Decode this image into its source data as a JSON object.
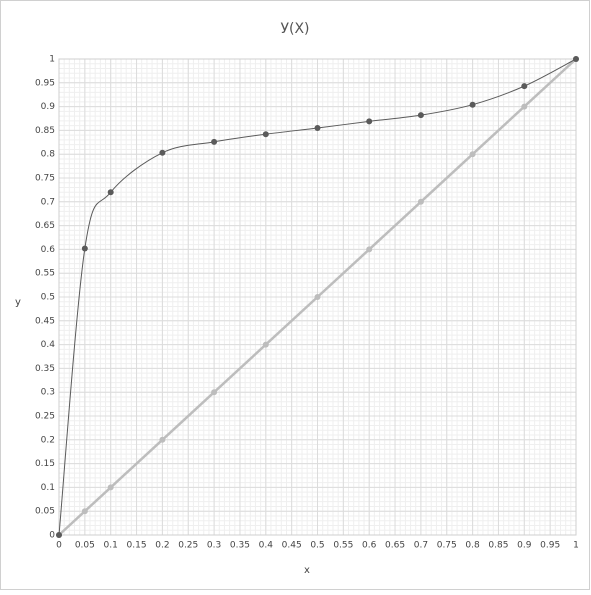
{
  "chart_data": {
    "type": "line",
    "title": "У(Х)",
    "x_label": "x",
    "y_label": "y",
    "x": [
      0,
      0.05,
      0.1,
      0.2,
      0.3,
      0.4,
      0.5,
      0.6,
      0.7,
      0.8,
      0.9,
      1
    ],
    "series": [
      {
        "color": "#5a5a5a",
        "values": [
          0,
          0.602,
          0.72,
          0.803,
          0.826,
          0.842,
          0.855,
          0.869,
          0.882,
          0.904,
          0.943,
          1
        ],
        "smooth": true
      },
      {
        "color": "#bdbdbd",
        "values": [
          0,
          0.05,
          0.1,
          0.2,
          0.3,
          0.4,
          0.5,
          0.6,
          0.7,
          0.8,
          0.9,
          1
        ],
        "smooth": false
      }
    ],
    "xlim": [
      0,
      1
    ],
    "ylim": [
      0,
      1
    ],
    "xticks": [
      0,
      0.05,
      0.1,
      0.15,
      0.2,
      0.25,
      0.3,
      0.35,
      0.4,
      0.45,
      0.5,
      0.55,
      0.6,
      0.65,
      0.7,
      0.75,
      0.8,
      0.85,
      0.9,
      0.95,
      1
    ],
    "yticks": [
      0,
      0.05,
      0.1,
      0.15,
      0.2,
      0.25,
      0.3,
      0.35,
      0.4,
      0.45,
      0.5,
      0.55,
      0.6,
      0.65,
      0.7,
      0.75,
      0.8,
      0.85,
      0.9,
      0.95,
      1
    ],
    "grid": true,
    "minor_grid": true
  }
}
